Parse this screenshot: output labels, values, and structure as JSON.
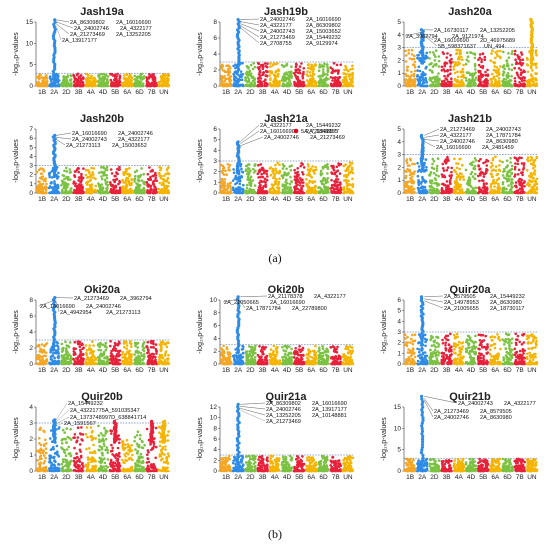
{
  "captions": [
    "(a)",
    "(b)"
  ],
  "chart_data": [
    {
      "type": "scatter",
      "title": "Jash19a",
      "ylabel": "-log₁₀p-values",
      "categories": [
        "1B",
        "2A",
        "2D",
        "3B",
        "4A",
        "4D",
        "5B",
        "6A",
        "6D",
        "7B",
        "UN"
      ],
      "ylim": [
        0,
        15
      ],
      "yticks": [
        0,
        5,
        10,
        15
      ],
      "threshold": 3,
      "peaks": [
        {
          "cat": "2A",
          "value": 15.5
        }
      ],
      "annotations": [
        "2A_86309802",
        "2A_16016690",
        "2A_24002746",
        "2A_4322177",
        "2A_21273469",
        "2A_13252205",
        "2A_13917177"
      ],
      "legend": null
    },
    {
      "type": "scatter",
      "title": "Jash19b",
      "ylabel": "-log₁₀p-values",
      "categories": [
        "1B",
        "2A",
        "2D",
        "3B",
        "4A",
        "4D",
        "5B",
        "6A",
        "6D",
        "7B",
        "UN"
      ],
      "ylim": [
        0,
        8
      ],
      "yticks": [
        0,
        2,
        4,
        6,
        8
      ],
      "threshold": 3,
      "peaks": [
        {
          "cat": "2A",
          "value": 8.3
        }
      ],
      "annotations": [
        "2A_24002746",
        "2A_16016690",
        "2A_4322177",
        "2A_86309802",
        "2A_24002743",
        "2A_15003652",
        "2A_21273469",
        "2A_15449232",
        "2A_2708755",
        "2A_9129974"
      ],
      "legend": null
    },
    {
      "type": "scatter",
      "title": "Jash20a",
      "ylabel": "-log₁₀p-values",
      "categories": [
        "1B",
        "2A",
        "2D",
        "3B",
        "4A",
        "4D",
        "5B",
        "6A",
        "6D",
        "7B",
        "UN"
      ],
      "ylim": [
        0,
        5
      ],
      "yticks": [
        0,
        1,
        2,
        3,
        4,
        5
      ],
      "threshold": 3,
      "peaks": [
        {
          "cat": "2A",
          "value": 4.4
        },
        {
          "cat": "UN",
          "value": 5.2
        }
      ],
      "annotations": [
        "2A_16730117",
        "2A_13252205",
        "2A_3962794",
        "2A_9121974",
        "2A_16016690",
        "2D_46975689",
        "5B_598371637",
        "UN_494"
      ],
      "legend": null
    },
    {
      "type": "scatter",
      "title": "Jash20b",
      "ylabel": "-log₁₀p-values",
      "categories": [
        "1B",
        "2A",
        "2D",
        "3B",
        "4A",
        "4D",
        "5B",
        "6A",
        "6D",
        "7B",
        "UN"
      ],
      "ylim": [
        0,
        7
      ],
      "yticks": [
        0,
        1,
        2,
        3,
        4,
        5,
        6,
        7
      ],
      "threshold": 3,
      "peaks": [
        {
          "cat": "2A",
          "value": 6.3
        }
      ],
      "annotations": [
        "2A_16016690",
        "2A_24002746",
        "2A_24002743",
        "2A_4322177",
        "2A_21273113",
        "2A_15003652"
      ],
      "legend": null
    },
    {
      "type": "scatter",
      "title": "Jash21a",
      "ylabel": "-log₁₀p-values",
      "categories": [
        "1B",
        "2A",
        "2D",
        "3B",
        "4A",
        "4D",
        "5B",
        "6A",
        "6D",
        "7B",
        "UN"
      ],
      "ylim": [
        0,
        6
      ],
      "yticks": [
        0,
        1,
        2,
        3,
        4,
        5,
        6
      ],
      "threshold": 3,
      "peaks": [
        {
          "cat": "2A",
          "value": 4.8
        }
      ],
      "annotations": [
        "2A_4322177",
        "2A_15449232",
        "2A_16016690",
        "2A_1846955",
        "2A_24002746",
        "2A_21273469"
      ],
      "legend": {
        "marker_color": "#e0001b",
        "label": "5A_721998977"
      }
    },
    {
      "type": "scatter",
      "title": "Jash21b",
      "ylabel": "-log₁₀p-values",
      "categories": [
        "1B",
        "2A",
        "2D",
        "3B",
        "4A",
        "4D",
        "5B",
        "6A",
        "6D",
        "7B",
        "UN"
      ],
      "ylim": [
        0,
        5
      ],
      "yticks": [
        0,
        1,
        2,
        3,
        4,
        5
      ],
      "threshold": 3,
      "peaks": [
        {
          "cat": "2A",
          "value": 4.5
        }
      ],
      "annotations": [
        "2A_21273469",
        "2A_24002743",
        "2A_4322177",
        "2A_17871784",
        "2A_24002746",
        "2A_8630980",
        "2A_16016690",
        "2A_2481459"
      ],
      "legend": null
    },
    {
      "type": "scatter",
      "title": "Oki20a",
      "ylabel": "-log₁₀p-values",
      "categories": [
        "1B",
        "2A",
        "2D",
        "3B",
        "4A",
        "4D",
        "5B",
        "6A",
        "6D",
        "7B",
        "UN"
      ],
      "ylim": [
        0,
        8
      ],
      "yticks": [
        0,
        2,
        4,
        6,
        8
      ],
      "threshold": 3,
      "peaks": [
        {
          "cat": "2A",
          "value": 8.3
        }
      ],
      "annotations": [
        "2A_21273469",
        "2A_3962794",
        "2A_16016690",
        "2A_24002746",
        "2A_4942954",
        "2A_21273113"
      ],
      "legend": null
    },
    {
      "type": "scatter",
      "title": "Oki20b",
      "ylabel": "-log₁₀p-values",
      "categories": [
        "1B",
        "2A",
        "2D",
        "3B",
        "4A",
        "4D",
        "5B",
        "6A",
        "6D",
        "7B",
        "UN"
      ],
      "ylim": [
        0,
        10
      ],
      "yticks": [
        0,
        2,
        4,
        6,
        8,
        10
      ],
      "threshold": 3,
      "peaks": [
        {
          "cat": "2A",
          "value": 10.5
        }
      ],
      "annotations": [
        "2A_21178378",
        "2A_4322177",
        "2A_21050665",
        "2A_16016690",
        "2A_17871784",
        "2A_22789800"
      ],
      "legend": null
    },
    {
      "type": "scatter",
      "title": "Quir20a",
      "ylabel": "-log₁₀p-values",
      "categories": [
        "1B",
        "2A",
        "2D",
        "3B",
        "4A",
        "4D",
        "5B",
        "6A",
        "6D",
        "7B",
        "UN"
      ],
      "ylim": [
        0,
        6
      ],
      "yticks": [
        0,
        1,
        2,
        3,
        4,
        5,
        6
      ],
      "threshold": 3,
      "peaks": [
        {
          "cat": "2A",
          "value": 6.3
        }
      ],
      "annotations": [
        "2A_8579505",
        "2A_15449232",
        "2A_14978953",
        "2A_8630980",
        "2A_21005655",
        "2A_18730117"
      ],
      "legend": null
    },
    {
      "type": "scatter",
      "title": "Quir20b",
      "ylabel": "-log₁₀p-values",
      "categories": [
        "1B",
        "2A",
        "2D",
        "3B",
        "4A",
        "4D",
        "5B",
        "6A",
        "6D",
        "7B",
        "UN"
      ],
      "ylim": [
        0,
        4
      ],
      "yticks": [
        0,
        1,
        2,
        3,
        4
      ],
      "threshold": 3,
      "peaks": [
        {
          "cat": "2A",
          "value": 3.2
        },
        {
          "cat": "5B",
          "value": 3.1
        },
        {
          "cat": "7B",
          "value": 3.1
        },
        {
          "cat": "UN",
          "value": 3.1
        }
      ],
      "annotations": [
        "2A_15449232",
        "2A_43221775A_591035347",
        "2A_1373748997D_638841714",
        "2A_1591567"
      ],
      "legend": null
    },
    {
      "type": "scatter",
      "title": "Quir21a",
      "ylabel": "-log₁₀p-values",
      "categories": [
        "1B",
        "2A",
        "2D",
        "3B",
        "4A",
        "4D",
        "5B",
        "6A",
        "6D",
        "7B",
        "UN"
      ],
      "ylim": [
        0,
        12
      ],
      "yticks": [
        0,
        2,
        4,
        6,
        8,
        10,
        12
      ],
      "threshold": 3,
      "peaks": [
        {
          "cat": "2A",
          "value": 12.5
        }
      ],
      "annotations": [
        "2A_86309802",
        "2A_16016690",
        "2A_24002746",
        "2A_13917177",
        "2A_13252205",
        "2A_10148881",
        "2A_21273469"
      ],
      "legend": null
    },
    {
      "type": "scatter",
      "title": "Quir21b",
      "ylabel": "-log₁₀p-values",
      "categories": [
        "1B",
        "2A",
        "2D",
        "3B",
        "4A",
        "4D",
        "5B",
        "6A",
        "6D",
        "7B",
        "UN"
      ],
      "ylim": [
        0,
        15
      ],
      "yticks": [
        0,
        5,
        10,
        15
      ],
      "threshold": 3,
      "peaks": [
        {
          "cat": "2A",
          "value": 17.5
        }
      ],
      "annotations": [
        "2A_24002743",
        "2A_4322177",
        "2A_21273469",
        "2A_8579505",
        "2A_24002746",
        "2A_8630980"
      ],
      "legend": null
    }
  ]
}
